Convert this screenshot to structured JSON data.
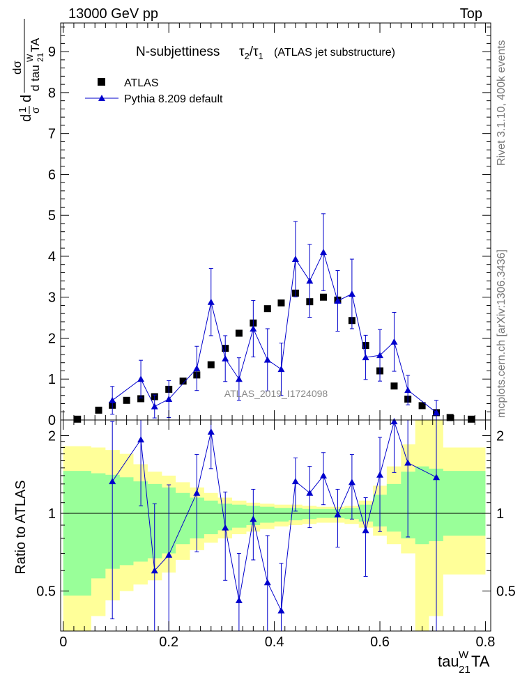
{
  "header": {
    "energy_label": "13000 GeV pp",
    "process_label": "Top"
  },
  "side_labels": {
    "rivet": "Rivet 3.1.10,  400k events",
    "mcplots": "mcplots.cern.ch [arXiv:1306.3436]"
  },
  "watermark": "ATLAS_2019_I1724098",
  "colors": {
    "data": "#000000",
    "mc": "#0000cc",
    "band_inner": "#99ff99",
    "band_outer": "#ffff99",
    "ratio_line": "#000000"
  },
  "chart_data": [
    {
      "type": "scatter",
      "panel": "main",
      "title_text": "N-subjettiness",
      "title_formula": "τ2/τ1",
      "title_suffix": "(ATLAS jet substructure)",
      "ylabel": "1/σ dσ/d tau21WTA",
      "xlim": [
        -0.005,
        0.81
      ],
      "ylim": [
        0,
        9.7
      ],
      "yticks": [
        0,
        1,
        2,
        3,
        4,
        5,
        6,
        7,
        8,
        9
      ],
      "legend": [
        "ATLAS",
        "Pythia 8.209 default"
      ],
      "legend_position": "top-left",
      "series": [
        {
          "name": "ATLAS",
          "x": [
            0.027,
            0.067,
            0.093,
            0.12,
            0.147,
            0.173,
            0.2,
            0.227,
            0.253,
            0.28,
            0.307,
            0.333,
            0.36,
            0.387,
            0.413,
            0.44,
            0.467,
            0.493,
            0.52,
            0.547,
            0.573,
            0.6,
            0.627,
            0.653,
            0.68,
            0.707,
            0.733,
            0.773
          ],
          "y": [
            0.02,
            0.24,
            0.36,
            0.48,
            0.52,
            0.57,
            0.75,
            0.95,
            1.1,
            1.35,
            1.75,
            2.12,
            2.37,
            2.72,
            2.86,
            3.1,
            2.89,
            3.0,
            2.93,
            2.43,
            1.82,
            1.2,
            0.83,
            0.51,
            0.35,
            0.18,
            0.06,
            0.02
          ]
        },
        {
          "name": "Pythia 8.209 default",
          "x": [
            0.093,
            0.147,
            0.173,
            0.2,
            0.253,
            0.28,
            0.307,
            0.333,
            0.36,
            0.387,
            0.413,
            0.44,
            0.467,
            0.493,
            0.52,
            0.547,
            0.573,
            0.6,
            0.627,
            0.653,
            0.707
          ],
          "y": [
            0.48,
            1.0,
            0.33,
            0.51,
            1.26,
            2.88,
            1.5,
            1.0,
            2.23,
            1.47,
            1.24,
            3.93,
            3.4,
            4.1,
            2.91,
            3.08,
            1.53,
            1.58,
            1.91,
            0.73,
            0.18
          ],
          "err_low": [
            0.34,
            0.46,
            0.28,
            0.45,
            0.54,
            0.82,
            0.56,
            0.52,
            0.69,
            0.76,
            0.64,
            0.92,
            0.89,
            0.94,
            0.74,
            0.85,
            0.54,
            0.63,
            0.72,
            0.36,
            0.3
          ],
          "err_high": [
            0.34,
            0.46,
            0.28,
            0.45,
            0.54,
            0.82,
            0.56,
            0.52,
            0.69,
            0.76,
            0.64,
            0.92,
            0.89,
            0.94,
            0.74,
            0.85,
            0.54,
            0.63,
            0.72,
            0.36,
            0.3
          ]
        }
      ]
    },
    {
      "type": "line",
      "panel": "ratio",
      "ylabel": "Ratio to ATLAS",
      "xlabel_base": "tau",
      "xlabel_sup": "W",
      "xlabel_sub": "21",
      "xlabel_tail": "TA",
      "xlim": [
        -0.005,
        0.81
      ],
      "ylim": [
        0.35,
        2.3
      ],
      "xticks": [
        0,
        0.2,
        0.4,
        0.6,
        0.8
      ],
      "xtick_labels": [
        "0",
        "0.2",
        "0.4",
        "0.6",
        "0.8"
      ],
      "yticks": [
        0.5,
        1,
        2
      ],
      "ytick_labels": [
        "0.5",
        "1",
        "2"
      ],
      "band_edges": [
        0.0,
        0.053,
        0.08,
        0.107,
        0.133,
        0.16,
        0.187,
        0.213,
        0.24,
        0.267,
        0.293,
        0.32,
        0.347,
        0.373,
        0.4,
        0.427,
        0.453,
        0.48,
        0.507,
        0.533,
        0.56,
        0.587,
        0.613,
        0.64,
        0.667,
        0.693,
        0.72,
        0.8
      ],
      "band_inner_low": [
        0.48,
        0.56,
        0.61,
        0.63,
        0.65,
        0.67,
        0.7,
        0.76,
        0.8,
        0.83,
        0.86,
        0.88,
        0.9,
        0.92,
        0.93,
        0.94,
        0.95,
        0.96,
        0.96,
        0.95,
        0.93,
        0.89,
        0.85,
        0.8,
        0.76,
        0.78,
        0.82
      ],
      "band_inner_high": [
        1.46,
        1.43,
        1.41,
        1.38,
        1.33,
        1.3,
        1.26,
        1.2,
        1.15,
        1.12,
        1.09,
        1.08,
        1.07,
        1.06,
        1.05,
        1.05,
        1.04,
        1.04,
        1.04,
        1.05,
        1.08,
        1.18,
        1.3,
        1.45,
        1.52,
        1.49,
        1.46
      ],
      "band_outer_low": [
        0.35,
        0.4,
        0.46,
        0.5,
        0.53,
        0.55,
        0.59,
        0.66,
        0.72,
        0.77,
        0.8,
        0.83,
        0.85,
        0.87,
        0.89,
        0.9,
        0.91,
        0.92,
        0.92,
        0.91,
        0.88,
        0.82,
        0.76,
        0.7,
        0.35,
        0.4,
        0.58
      ],
      "band_outer_high": [
        1.82,
        1.8,
        1.76,
        1.7,
        1.55,
        1.45,
        1.4,
        1.32,
        1.26,
        1.2,
        1.15,
        1.12,
        1.1,
        1.09,
        1.08,
        1.08,
        1.07,
        1.06,
        1.06,
        1.07,
        1.12,
        1.28,
        1.52,
        1.85,
        2.3,
        2.3,
        1.8
      ],
      "series": [
        {
          "name": "Pythia 8.209 default / ATLAS",
          "x": [
            0.093,
            0.147,
            0.173,
            0.2,
            0.253,
            0.28,
            0.307,
            0.333,
            0.36,
            0.387,
            0.413,
            0.44,
            0.467,
            0.493,
            0.52,
            0.547,
            0.573,
            0.6,
            0.627,
            0.653,
            0.707
          ],
          "y": [
            1.33,
            1.93,
            0.6,
            0.69,
            1.2,
            2.07,
            0.88,
            0.46,
            0.95,
            0.54,
            0.42,
            1.33,
            1.2,
            1.4,
            0.99,
            1.32,
            0.86,
            1.41,
            2.27,
            1.57,
            1.38
          ],
          "err_low": [
            0.94,
            0.86,
            0.49,
            0.6,
            0.49,
            0.58,
            0.33,
            0.24,
            0.29,
            0.28,
            0.22,
            0.31,
            0.32,
            0.32,
            0.25,
            0.37,
            0.29,
            0.56,
            0.83,
            0.76,
            1.11
          ],
          "err_high": [
            0.94,
            0.86,
            0.49,
            0.6,
            0.49,
            0.58,
            0.33,
            0.24,
            0.29,
            0.28,
            0.22,
            0.31,
            0.32,
            0.32,
            0.25,
            0.37,
            0.29,
            0.56,
            0.83,
            0.76,
            1.11
          ]
        }
      ]
    }
  ]
}
